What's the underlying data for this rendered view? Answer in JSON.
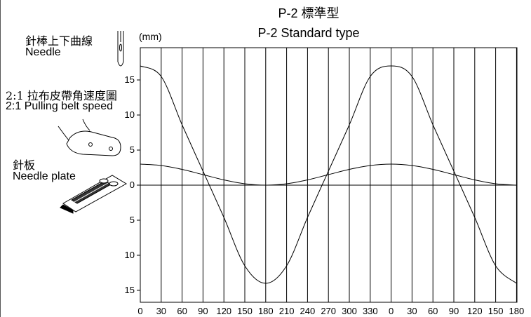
{
  "title_zh": "P-2 標準型",
  "title_en": "P-2 Standard type",
  "unit": "(mm)",
  "side_labels": {
    "needle_zh": "針棒上下曲線",
    "needle_en": "Needle",
    "belt_zh": "2:1 拉布皮帶角速度圖",
    "belt_en": "2:1 Pulling belt speed",
    "plate_zh": "針板",
    "plate_en": "Needle plate"
  },
  "chart_data": {
    "type": "line",
    "unit": "(mm)",
    "x_ticks": [
      "0",
      "30",
      "60",
      "90",
      "120",
      "150",
      "180",
      "210",
      "240",
      "270",
      "300",
      "330",
      "0",
      "30",
      "60",
      "90",
      "120",
      "150",
      "180"
    ],
    "y_ticks_upper": [
      "15",
      "10",
      "5",
      "0"
    ],
    "y_ticks_lower": [
      "5",
      "10",
      "15"
    ],
    "ylim": [
      -15,
      15
    ],
    "grid": "vertical",
    "series": [
      {
        "x": [
          0,
          30,
          60,
          90,
          120,
          150,
          180,
          210,
          240,
          270,
          300,
          330,
          360,
          390,
          420,
          450,
          480,
          510,
          540
        ],
        "values": [
          17,
          15.5,
          8.6,
          2,
          -4.6,
          -11.5,
          -14,
          -11.5,
          -4.6,
          2,
          8.6,
          15.5,
          17,
          15.5,
          8.6,
          2,
          -4.6,
          -11.5,
          -14
        ]
      },
      {
        "x": [
          0,
          30,
          60,
          90,
          120,
          150,
          180,
          210,
          240,
          270,
          300,
          330,
          360,
          390,
          420,
          450,
          480,
          510,
          540
        ],
        "values": [
          3,
          2.8,
          2.25,
          1.5,
          0.75,
          0.2,
          0,
          0.2,
          0.75,
          1.5,
          2.25,
          2.8,
          3,
          2.8,
          2.25,
          1.5,
          0.75,
          0.2,
          0
        ]
      }
    ]
  },
  "colors": {
    "line": "#000000",
    "background": "#ffffff"
  },
  "icons": [
    "needle-icon",
    "pulling-belt-icon",
    "needle-plate-icon"
  ]
}
